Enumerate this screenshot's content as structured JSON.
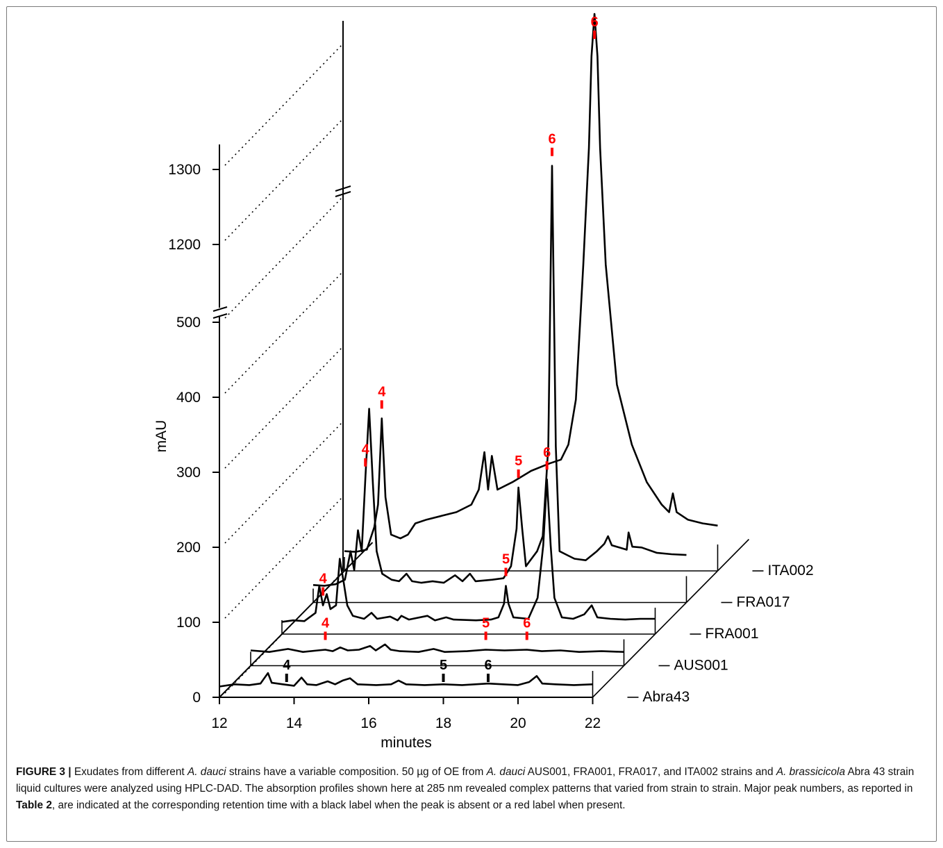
{
  "chart_data": {
    "type": "line",
    "subtype": "3d-stacked-chromatograms",
    "xlabel": "minutes",
    "ylabel": "mAU",
    "x_ticks": [
      "12",
      "14",
      "16",
      "18",
      "20",
      "22"
    ],
    "xlim": [
      12,
      22
    ],
    "y_ticks": [
      "0",
      "100",
      "200",
      "300",
      "400",
      "500",
      "1200",
      "1300"
    ],
    "y_axis_break": "between 500 and 1200",
    "ylim": [
      0,
      1300
    ],
    "series": [
      {
        "name": "Abra43",
        "peaks": [
          {
            "label": "4",
            "x": 13.8,
            "color": "#000000",
            "present": false
          },
          {
            "label": "5",
            "x": 18.0,
            "color": "#000000",
            "present": false
          },
          {
            "label": "6",
            "x": 19.2,
            "color": "#000000",
            "present": false
          }
        ],
        "points": [
          [
            12,
            6
          ],
          [
            12.4,
            9
          ],
          [
            12.8,
            8
          ],
          [
            13.1,
            10
          ],
          [
            13.3,
            24
          ],
          [
            13.4,
            11
          ],
          [
            13.7,
            9
          ],
          [
            14.0,
            7
          ],
          [
            14.2,
            18
          ],
          [
            14.35,
            9
          ],
          [
            14.6,
            8
          ],
          [
            14.9,
            13
          ],
          [
            15.1,
            9
          ],
          [
            15.3,
            14
          ],
          [
            15.5,
            17
          ],
          [
            15.7,
            9
          ],
          [
            16.2,
            8
          ],
          [
            16.6,
            9
          ],
          [
            16.8,
            14
          ],
          [
            17.0,
            9
          ],
          [
            17.5,
            8
          ],
          [
            18.0,
            9
          ],
          [
            18.5,
            8
          ],
          [
            19.2,
            10
          ],
          [
            19.6,
            9
          ],
          [
            20.0,
            8
          ],
          [
            20.3,
            12
          ],
          [
            20.5,
            20
          ],
          [
            20.65,
            10
          ],
          [
            21.0,
            9
          ],
          [
            21.5,
            8
          ],
          [
            22,
            9
          ]
        ]
      },
      {
        "name": "AUS001",
        "peaks": [
          {
            "label": "4",
            "x": 14.0,
            "color": "#ff0000",
            "present": true
          },
          {
            "label": "5",
            "x": 18.3,
            "color": "#ff0000",
            "present": true
          },
          {
            "label": "6",
            "x": 19.4,
            "color": "#ff0000",
            "present": true
          }
        ],
        "points": [
          [
            12,
            12
          ],
          [
            12.5,
            10
          ],
          [
            13.0,
            14
          ],
          [
            13.4,
            10
          ],
          [
            13.8,
            12
          ],
          [
            14.0,
            13
          ],
          [
            14.2,
            11
          ],
          [
            14.4,
            16
          ],
          [
            14.6,
            12
          ],
          [
            14.9,
            13
          ],
          [
            15.2,
            18
          ],
          [
            15.35,
            12
          ],
          [
            15.6,
            20
          ],
          [
            15.75,
            13
          ],
          [
            16.0,
            11
          ],
          [
            16.5,
            10
          ],
          [
            16.9,
            14
          ],
          [
            17.2,
            10
          ],
          [
            17.8,
            11
          ],
          [
            18.3,
            13
          ],
          [
            18.8,
            12
          ],
          [
            19.4,
            13
          ],
          [
            19.8,
            11
          ],
          [
            20.3,
            12
          ],
          [
            20.8,
            10
          ],
          [
            21.4,
            11
          ],
          [
            22,
            10
          ]
        ]
      },
      {
        "name": "FRA001",
        "peaks": [
          {
            "label": "4",
            "x": 13.1,
            "color": "#ff0000",
            "present": true
          },
          {
            "label": "5",
            "x": 18.0,
            "color": "#ff0000",
            "present": true
          },
          {
            "label": "6",
            "x": 19.1,
            "color": "#ff0000",
            "present": true
          }
        ],
        "points": [
          [
            12,
            8
          ],
          [
            12.3,
            10
          ],
          [
            12.6,
            9
          ],
          [
            12.9,
            20
          ],
          [
            13.0,
            56
          ],
          [
            13.1,
            30
          ],
          [
            13.2,
            45
          ],
          [
            13.3,
            25
          ],
          [
            13.45,
            30
          ],
          [
            13.55,
            92
          ],
          [
            13.65,
            62
          ],
          [
            13.75,
            30
          ],
          [
            13.9,
            16
          ],
          [
            14.2,
            12
          ],
          [
            14.4,
            20
          ],
          [
            14.55,
            12
          ],
          [
            14.9,
            15
          ],
          [
            15.1,
            10
          ],
          [
            15.2,
            16
          ],
          [
            15.4,
            11
          ],
          [
            15.9,
            16
          ],
          [
            16.1,
            10
          ],
          [
            16.4,
            14
          ],
          [
            16.6,
            11
          ],
          [
            17.2,
            10
          ],
          [
            17.6,
            11
          ],
          [
            17.8,
            14
          ],
          [
            17.95,
            32
          ],
          [
            18.0,
            56
          ],
          [
            18.07,
            32
          ],
          [
            18.2,
            14
          ],
          [
            18.6,
            12
          ],
          [
            18.85,
            40
          ],
          [
            19.0,
            110
          ],
          [
            19.1,
            198
          ],
          [
            19.2,
            110
          ],
          [
            19.3,
            40
          ],
          [
            19.5,
            14
          ],
          [
            19.8,
            12
          ],
          [
            20.1,
            18
          ],
          [
            20.3,
            30
          ],
          [
            20.45,
            14
          ],
          [
            20.8,
            12
          ],
          [
            21.2,
            11
          ],
          [
            21.6,
            12
          ],
          [
            22,
            12
          ]
        ]
      },
      {
        "name": "FRA017",
        "peaks": [
          {
            "label": "4",
            "x": 13.4,
            "color": "#ff0000",
            "present": true
          },
          {
            "label": "5",
            "x": 17.5,
            "color": "#ff0000",
            "present": true
          },
          {
            "label": "6",
            "x": 18.4,
            "color": "#ff0000",
            "present": true
          }
        ],
        "points": [
          [
            12,
            15
          ],
          [
            12.3,
            14
          ],
          [
            12.6,
            16
          ],
          [
            12.85,
            22
          ],
          [
            13.0,
            60
          ],
          [
            13.1,
            35
          ],
          [
            13.2,
            88
          ],
          [
            13.3,
            60
          ],
          [
            13.4,
            160
          ],
          [
            13.5,
            250
          ],
          [
            13.6,
            150
          ],
          [
            13.7,
            60
          ],
          [
            13.85,
            30
          ],
          [
            14.1,
            22
          ],
          [
            14.3,
            20
          ],
          [
            14.5,
            30
          ],
          [
            14.65,
            20
          ],
          [
            14.9,
            18
          ],
          [
            15.2,
            20
          ],
          [
            15.5,
            18
          ],
          [
            15.8,
            28
          ],
          [
            16.0,
            20
          ],
          [
            16.2,
            30
          ],
          [
            16.35,
            20
          ],
          [
            16.8,
            22
          ],
          [
            17.1,
            24
          ],
          [
            17.3,
            40
          ],
          [
            17.45,
            90
          ],
          [
            17.5,
            145
          ],
          [
            17.6,
            90
          ],
          [
            17.7,
            40
          ],
          [
            17.85,
            50
          ],
          [
            18.0,
            60
          ],
          [
            18.15,
            80
          ],
          [
            18.3,
            200
          ],
          [
            18.4,
            1165
          ],
          [
            18.5,
            200
          ],
          [
            18.6,
            60
          ],
          [
            18.8,
            55
          ],
          [
            19.0,
            50
          ],
          [
            19.3,
            48
          ],
          [
            19.6,
            60
          ],
          [
            19.8,
            70
          ],
          [
            19.9,
            80
          ],
          [
            20.0,
            68
          ],
          [
            20.2,
            65
          ],
          [
            20.4,
            62
          ],
          [
            20.45,
            85
          ],
          [
            20.55,
            66
          ],
          [
            20.8,
            65
          ],
          [
            21.2,
            58
          ],
          [
            21.6,
            56
          ],
          [
            22,
            55
          ]
        ]
      },
      {
        "name": "ITA002",
        "peaks": [
          {
            "label": "4",
            "x": 13.0,
            "color": "#ff0000",
            "present": true
          },
          {
            "label": "6",
            "x": 18.7,
            "color": "#ff0000",
            "present": true
          }
        ],
        "points": [
          [
            12,
            18
          ],
          [
            12.3,
            17
          ],
          [
            12.6,
            20
          ],
          [
            12.8,
            50
          ],
          [
            12.9,
            80
          ],
          [
            13.0,
            195
          ],
          [
            13.1,
            90
          ],
          [
            13.25,
            40
          ],
          [
            13.5,
            35
          ],
          [
            13.7,
            40
          ],
          [
            13.9,
            55
          ],
          [
            14.2,
            60
          ],
          [
            14.6,
            65
          ],
          [
            15.0,
            70
          ],
          [
            15.4,
            80
          ],
          [
            15.6,
            100
          ],
          [
            15.75,
            150
          ],
          [
            15.85,
            100
          ],
          [
            15.95,
            145
          ],
          [
            16.1,
            100
          ],
          [
            16.5,
            110
          ],
          [
            17.0,
            125
          ],
          [
            17.5,
            135
          ],
          [
            17.8,
            140
          ],
          [
            18.0,
            160
          ],
          [
            18.2,
            220
          ],
          [
            18.4,
            400
          ],
          [
            18.55,
            1000
          ],
          [
            18.62,
            1300
          ],
          [
            18.7,
            1400
          ],
          [
            18.78,
            1300
          ],
          [
            18.85,
            1000
          ],
          [
            19.0,
            400
          ],
          [
            19.3,
            240
          ],
          [
            19.7,
            160
          ],
          [
            20.1,
            110
          ],
          [
            20.5,
            80
          ],
          [
            20.7,
            70
          ],
          [
            20.8,
            95
          ],
          [
            20.9,
            70
          ],
          [
            21.2,
            60
          ],
          [
            21.6,
            55
          ],
          [
            22,
            52
          ]
        ]
      }
    ]
  },
  "caption": {
    "figure_label": "FIGURE 3 |",
    "part1": " Exudates from different ",
    "species1": "A. dauci",
    "part2": " strains have a variable composition. 50 µg of OE from ",
    "species2": "A. dauci",
    "part3": " AUS001, FRA001, FRA017, and ITA002 strains and ",
    "species3": "A. brassicicola",
    "part4": " Abra 43 strain liquid cultures were analyzed using HPLC-DAD. The absorption profiles shown here at 285 nm revealed complex patterns that varied from strain to strain. Major peak numbers, as reported in ",
    "table_ref": "Table 2",
    "part5": ", are indicated at the corresponding retention time with a black label when the peak is absent or a red label when present."
  }
}
